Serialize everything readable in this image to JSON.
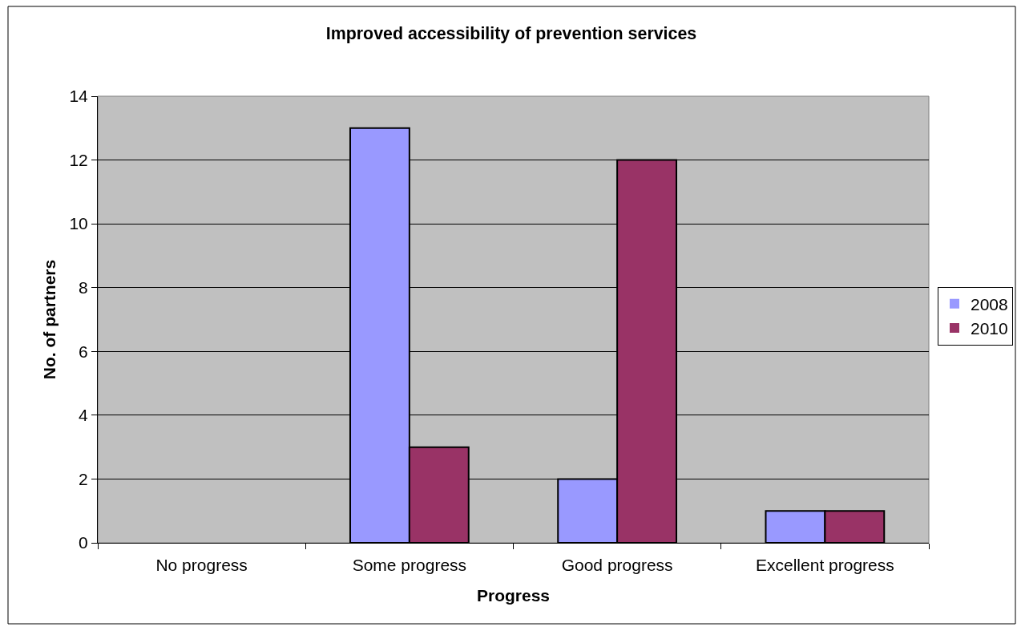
{
  "chart_data": {
    "type": "bar",
    "title": "Improved accessibility of prevention services",
    "xlabel": "Progress",
    "ylabel": "No. of partners",
    "categories": [
      "No progress",
      "Some progress",
      "Good progress",
      "Excellent progress"
    ],
    "series": [
      {
        "name": "2008",
        "color": "#9999ff",
        "values": [
          0,
          13,
          2,
          1
        ]
      },
      {
        "name": "2010",
        "color": "#993366",
        "values": [
          0,
          3,
          12,
          1
        ]
      }
    ],
    "ylim": [
      0,
      14
    ],
    "yticks": [
      0,
      2,
      4,
      6,
      8,
      10,
      12,
      14
    ],
    "grid": "y",
    "legend": "right"
  }
}
